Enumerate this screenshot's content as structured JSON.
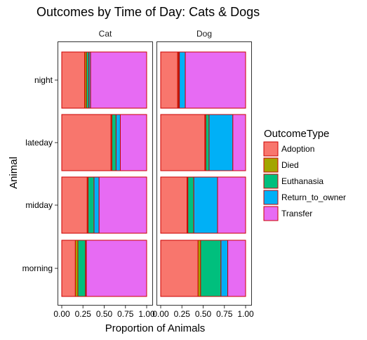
{
  "chart_data": {
    "type": "bar",
    "orientation": "horizontal",
    "stacked": true,
    "title": "Outcomes by Time of Day: Cats & Dogs",
    "xlabel": "Proportion of Animals",
    "ylabel": "Animal",
    "xlim": [
      0,
      1
    ],
    "xticks": [
      "0.00",
      "0.25",
      "0.50",
      "0.75",
      "1.00"
    ],
    "xtick_values": [
      0,
      0.25,
      0.5,
      0.75,
      1.0
    ],
    "categories": [
      "night",
      "lateday",
      "midday",
      "morning"
    ],
    "facets": [
      "Cat",
      "Dog"
    ],
    "legend": {
      "title": "OutcomeType",
      "position": "right",
      "entries": [
        "Adoption",
        "Died",
        "Euthanasia",
        "Return_to_owner",
        "Transfer"
      ]
    },
    "colors": {
      "Adoption": "#F8766D",
      "Died": "#A3A500",
      "Euthanasia": "#00BF7D",
      "Return_to_owner": "#00B0F6",
      "Transfer": "#E76BF3"
    },
    "bar_border_color": "#CC0000",
    "grid": false,
    "panels": [
      {
        "facet": "Cat",
        "series": [
          {
            "name": "Adoption",
            "values": [
              0.27,
              0.58,
              0.3,
              0.16
            ]
          },
          {
            "name": "Died",
            "values": [
              0.02,
              0.01,
              0.01,
              0.03
            ]
          },
          {
            "name": "Euthanasia",
            "values": [
              0.03,
              0.05,
              0.07,
              0.09
            ]
          },
          {
            "name": "Return_to_owner",
            "values": [
              0.02,
              0.05,
              0.06,
              0.01
            ]
          },
          {
            "name": "Transfer",
            "values": [
              0.66,
              0.31,
              0.56,
              0.71
            ]
          }
        ]
      },
      {
        "facet": "Dog",
        "series": [
          {
            "name": "Adoption",
            "values": [
              0.2,
              0.52,
              0.31,
              0.44
            ]
          },
          {
            "name": "Died",
            "values": [
              0.01,
              0.01,
              0.01,
              0.03
            ]
          },
          {
            "name": "Euthanasia",
            "values": [
              0.01,
              0.04,
              0.07,
              0.24
            ]
          },
          {
            "name": "Return_to_owner",
            "values": [
              0.07,
              0.28,
              0.28,
              0.08
            ]
          },
          {
            "name": "Transfer",
            "values": [
              0.71,
              0.15,
              0.33,
              0.21
            ]
          }
        ]
      }
    ]
  }
}
